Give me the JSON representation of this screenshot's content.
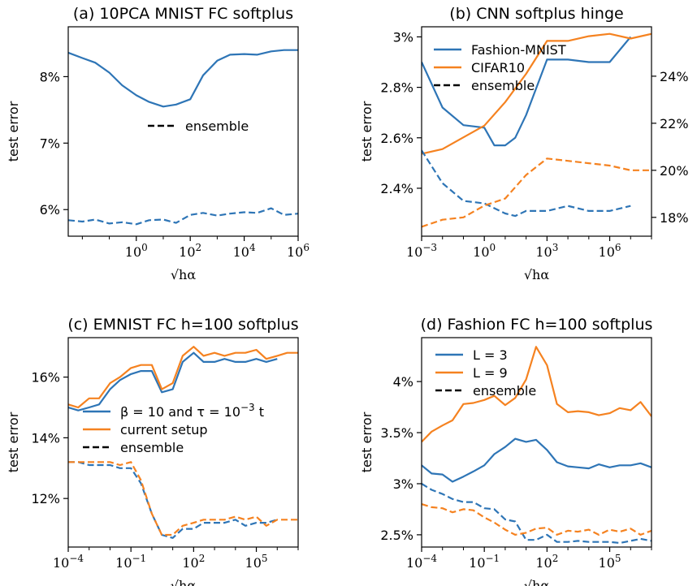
{
  "colors": {
    "blue": "#2E75B6",
    "orange": "#F58220"
  },
  "chart_data": [
    {
      "type": "line",
      "title": "(a) 10PCA MNIST FC softplus",
      "xlabel": "√hα",
      "ylabel": "test error",
      "xscale": "log",
      "xlim": [
        0.003,
        1000000
      ],
      "ylim": [
        5.6,
        8.75
      ],
      "xticks": [
        1,
        100,
        10000,
        1000000
      ],
      "xtick_labels": [
        "10^0",
        "10^2",
        "10^4",
        "10^6"
      ],
      "yticks": [
        6,
        7,
        8
      ],
      "ytick_labels": [
        "6%",
        "7%",
        "8%"
      ],
      "legend_position": "center-right",
      "series": [
        {
          "name": "",
          "color": "blue",
          "style": "solid",
          "x": [
            0.003,
            0.01,
            0.03,
            0.1,
            0.3,
            1,
            3,
            10,
            30,
            100,
            300,
            1000,
            3000,
            10000,
            30000,
            100000,
            300000,
            1000000
          ],
          "y": [
            8.36,
            8.28,
            8.21,
            8.06,
            7.87,
            7.72,
            7.62,
            7.55,
            7.58,
            7.66,
            8.02,
            8.24,
            8.33,
            8.34,
            8.33,
            8.38,
            8.4,
            8.4
          ]
        },
        {
          "name": "ensemble",
          "color": "black",
          "style": "dashed",
          "legend_only": true,
          "x": [],
          "y": []
        },
        {
          "name": "",
          "color": "blue",
          "style": "dashed",
          "x": [
            0.003,
            0.01,
            0.03,
            0.1,
            0.3,
            1,
            3,
            10,
            30,
            100,
            300,
            1000,
            3000,
            10000,
            30000,
            100000,
            300000,
            1000000
          ],
          "y": [
            5.84,
            5.82,
            5.85,
            5.79,
            5.81,
            5.78,
            5.84,
            5.85,
            5.8,
            5.92,
            5.95,
            5.91,
            5.94,
            5.96,
            5.95,
            6.02,
            5.92,
            5.94
          ]
        }
      ]
    },
    {
      "type": "line",
      "title": "(b) CNN softplus hinge",
      "xlabel": "√hα",
      "ylabel": "test error",
      "xscale": "log",
      "xlim": [
        0.001,
        100000000
      ],
      "ylim": [
        2.21,
        3.04
      ],
      "ylim_right": [
        17.2,
        26.1
      ],
      "xticks": [
        0.001,
        1,
        1000,
        1000000
      ],
      "xtick_labels": [
        "10^-3",
        "10^0",
        "10^3",
        "10^6"
      ],
      "yticks": [
        2.4,
        2.6,
        2.8,
        3.0
      ],
      "ytick_labels": [
        "2.4%",
        "2.6%",
        "2.8%",
        "3%"
      ],
      "yticks_right": [
        18,
        20,
        22,
        24
      ],
      "ytick_labels_right": [
        "18%",
        "20%",
        "22%",
        "24%"
      ],
      "legend_position": "upper-left",
      "series": [
        {
          "name": "Fashion-MNIST",
          "color": "blue",
          "style": "solid",
          "axis": "left",
          "x": [
            0.001,
            0.01,
            0.1,
            1,
            3,
            10,
            30,
            100,
            1000,
            10000,
            100000,
            1000000,
            10000000
          ],
          "y": [
            2.9,
            2.72,
            2.65,
            2.64,
            2.57,
            2.57,
            2.6,
            2.69,
            2.91,
            2.91,
            2.9,
            2.9,
            3.0
          ]
        },
        {
          "name": "CIFAR10",
          "color": "orange",
          "style": "solid",
          "axis": "right",
          "x": [
            0.001,
            0.01,
            0.1,
            1,
            10,
            100,
            1000,
            10000,
            100000,
            1000000,
            10000000,
            100000000
          ],
          "y": [
            20.7,
            20.9,
            21.4,
            21.9,
            22.9,
            24.1,
            25.5,
            25.5,
            25.7,
            25.8,
            25.6,
            25.8
          ]
        },
        {
          "name": "ensemble",
          "color": "black",
          "style": "dashed",
          "legend_only": true,
          "x": [],
          "y": []
        },
        {
          "name": "",
          "color": "blue",
          "style": "dashed",
          "axis": "left",
          "x": [
            0.001,
            0.01,
            0.1,
            1,
            10,
            30,
            100,
            1000,
            10000,
            100000,
            1000000,
            10000000
          ],
          "y": [
            2.55,
            2.42,
            2.35,
            2.34,
            2.3,
            2.29,
            2.31,
            2.31,
            2.33,
            2.31,
            2.31,
            2.33
          ]
        },
        {
          "name": "",
          "color": "orange",
          "style": "dashed",
          "axis": "right",
          "x": [
            0.001,
            0.01,
            0.1,
            1,
            10,
            100,
            1000,
            10000,
            100000,
            1000000,
            10000000,
            100000000
          ],
          "y": [
            17.6,
            17.9,
            18.0,
            18.5,
            18.8,
            19.8,
            20.5,
            20.4,
            20.3,
            20.2,
            20.0,
            20.0
          ]
        }
      ]
    },
    {
      "type": "line",
      "title": "(c) EMNIST FC h=100 softplus",
      "xlabel": "√hα",
      "ylabel": "test error",
      "xscale": "log",
      "xlim": [
        0.0001,
        10000000
      ],
      "ylim": [
        10.4,
        17.3
      ],
      "xticks": [
        0.0001,
        0.1,
        100,
        100000
      ],
      "xtick_labels": [
        "10^-4",
        "10^-1",
        "10^2",
        "10^5"
      ],
      "yticks": [
        12,
        14,
        16
      ],
      "ytick_labels": [
        "12%",
        "14%",
        "16%"
      ],
      "legend_position": "center-right",
      "series": [
        {
          "name": "β = 10 and τ = 10^-3 t",
          "color": "blue",
          "style": "solid",
          "x": [
            0.0001,
            0.0003,
            0.001,
            0.003,
            0.01,
            0.03,
            0.1,
            0.3,
            1,
            3,
            10,
            30,
            100,
            300,
            1000,
            3000,
            10000,
            30000,
            100000,
            300000,
            1000000
          ],
          "y": [
            15.0,
            14.9,
            15.0,
            15.1,
            15.6,
            15.9,
            16.1,
            16.2,
            16.2,
            15.5,
            15.6,
            16.5,
            16.8,
            16.5,
            16.5,
            16.6,
            16.5,
            16.5,
            16.6,
            16.5,
            16.6
          ]
        },
        {
          "name": "current setup",
          "color": "orange",
          "style": "solid",
          "x": [
            0.0001,
            0.0003,
            0.001,
            0.003,
            0.01,
            0.03,
            0.1,
            0.3,
            1,
            3,
            10,
            30,
            100,
            300,
            1000,
            3000,
            10000,
            30000,
            100000,
            300000,
            1000000,
            3000000,
            10000000
          ],
          "y": [
            15.1,
            15.0,
            15.3,
            15.3,
            15.8,
            16.0,
            16.3,
            16.4,
            16.4,
            15.6,
            15.8,
            16.7,
            17.0,
            16.7,
            16.8,
            16.7,
            16.8,
            16.8,
            16.9,
            16.6,
            16.7,
            16.8,
            16.8
          ]
        },
        {
          "name": "ensemble",
          "color": "black",
          "style": "dashed",
          "legend_only": true,
          "x": [],
          "y": []
        },
        {
          "name": "",
          "color": "blue",
          "style": "dashed",
          "x": [
            0.0001,
            0.0003,
            0.001,
            0.003,
            0.01,
            0.03,
            0.1,
            0.3,
            1,
            3,
            10,
            30,
            100,
            300,
            1000,
            3000,
            10000,
            30000,
            100000,
            300000,
            1000000
          ],
          "y": [
            13.2,
            13.2,
            13.1,
            13.1,
            13.1,
            13.0,
            13.0,
            12.5,
            11.5,
            10.8,
            10.7,
            11.0,
            11.0,
            11.2,
            11.2,
            11.2,
            11.3,
            11.1,
            11.2,
            11.2,
            11.3
          ]
        },
        {
          "name": "",
          "color": "orange",
          "style": "dashed",
          "x": [
            0.0001,
            0.0003,
            0.001,
            0.003,
            0.01,
            0.03,
            0.1,
            0.3,
            1,
            3,
            10,
            30,
            100,
            300,
            1000,
            3000,
            10000,
            30000,
            100000,
            300000,
            1000000,
            3000000,
            10000000
          ],
          "y": [
            13.2,
            13.2,
            13.2,
            13.2,
            13.2,
            13.1,
            13.2,
            12.6,
            11.5,
            10.8,
            10.8,
            11.1,
            11.2,
            11.3,
            11.3,
            11.3,
            11.4,
            11.3,
            11.4,
            11.1,
            11.3,
            11.3,
            11.3
          ]
        }
      ]
    },
    {
      "type": "line",
      "title": "(d) Fashion FC h=100 softplus",
      "xlabel": "√hα",
      "ylabel": "test error",
      "xscale": "log",
      "xlim": [
        0.0001,
        10000000
      ],
      "ylim": [
        2.38,
        4.43
      ],
      "xticks": [
        0.0001,
        0.1,
        100,
        100000
      ],
      "xtick_labels": [
        "10^-4",
        "10^-1",
        "10^2",
        "10^5"
      ],
      "yticks": [
        2.5,
        3.0,
        3.5,
        4.0
      ],
      "ytick_labels": [
        "2.5%",
        "3%",
        "3.5%",
        "4%"
      ],
      "legend_position": "upper-left",
      "series": [
        {
          "name": "L = 3",
          "color": "blue",
          "style": "solid",
          "x": [
            0.0001,
            0.0003,
            0.001,
            0.003,
            0.01,
            0.03,
            0.1,
            0.3,
            1,
            3,
            10,
            30,
            100,
            300,
            1000,
            3000,
            10000,
            30000,
            100000,
            300000,
            1000000,
            3000000,
            10000000
          ],
          "y": [
            3.18,
            3.1,
            3.09,
            3.02,
            3.07,
            3.12,
            3.18,
            3.29,
            3.36,
            3.44,
            3.41,
            3.43,
            3.33,
            3.21,
            3.17,
            3.16,
            3.15,
            3.19,
            3.16,
            3.18,
            3.18,
            3.2,
            3.16
          ]
        },
        {
          "name": "L = 9",
          "color": "orange",
          "style": "solid",
          "x": [
            0.0001,
            0.0003,
            0.001,
            0.003,
            0.01,
            0.03,
            0.1,
            0.3,
            1,
            3,
            10,
            30,
            100,
            300,
            1000,
            3000,
            10000,
            30000,
            100000,
            300000,
            1000000,
            3000000,
            10000000
          ],
          "y": [
            3.41,
            3.51,
            3.57,
            3.62,
            3.78,
            3.79,
            3.82,
            3.86,
            3.77,
            3.84,
            4.02,
            4.34,
            4.16,
            3.78,
            3.7,
            3.71,
            3.7,
            3.67,
            3.69,
            3.74,
            3.72,
            3.8,
            3.66
          ]
        },
        {
          "name": "ensemble",
          "color": "black",
          "style": "dashed",
          "legend_only": true,
          "x": [],
          "y": []
        },
        {
          "name": "",
          "color": "blue",
          "style": "dashed",
          "x": [
            0.0001,
            0.0003,
            0.001,
            0.003,
            0.01,
            0.03,
            0.1,
            0.3,
            1,
            3,
            10,
            30,
            100,
            300,
            1000,
            3000,
            10000,
            30000,
            100000,
            300000,
            1000000,
            3000000,
            10000000
          ],
          "y": [
            3.0,
            2.94,
            2.9,
            2.85,
            2.82,
            2.82,
            2.76,
            2.75,
            2.65,
            2.63,
            2.45,
            2.45,
            2.5,
            2.43,
            2.43,
            2.44,
            2.43,
            2.43,
            2.43,
            2.42,
            2.44,
            2.46,
            2.44
          ]
        },
        {
          "name": "",
          "color": "orange",
          "style": "dashed",
          "x": [
            0.0001,
            0.0003,
            0.001,
            0.003,
            0.01,
            0.03,
            0.1,
            0.3,
            1,
            3,
            10,
            30,
            100,
            300,
            1000,
            3000,
            10000,
            30000,
            100000,
            300000,
            1000000,
            3000000,
            10000000
          ],
          "y": [
            2.8,
            2.77,
            2.76,
            2.72,
            2.75,
            2.74,
            2.67,
            2.62,
            2.55,
            2.5,
            2.52,
            2.56,
            2.57,
            2.5,
            2.54,
            2.53,
            2.55,
            2.5,
            2.55,
            2.53,
            2.56,
            2.5,
            2.54
          ]
        }
      ]
    }
  ]
}
